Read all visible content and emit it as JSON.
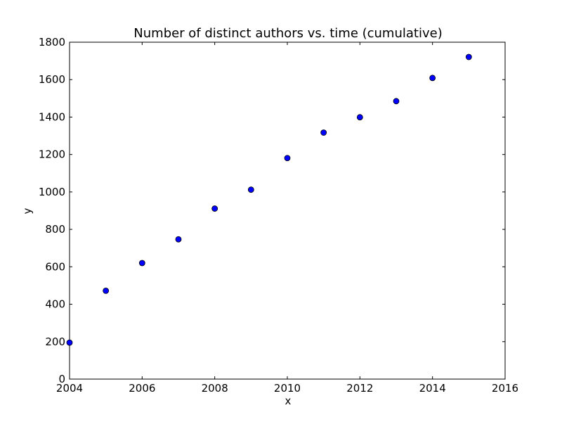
{
  "chart_data": {
    "type": "scatter",
    "title": "Number of distinct authors vs. time (cumulative)",
    "xlabel": "x",
    "ylabel": "y",
    "xlim": [
      2004,
      2016
    ],
    "ylim": [
      0,
      1800
    ],
    "xticks": [
      2004,
      2006,
      2008,
      2010,
      2012,
      2014,
      2016
    ],
    "yticks": [
      0,
      200,
      400,
      600,
      800,
      1000,
      1200,
      1400,
      1600,
      1800
    ],
    "grid": false,
    "marker_color": "#0000ff",
    "points": [
      {
        "x": 2004,
        "y": 195
      },
      {
        "x": 2005,
        "y": 472
      },
      {
        "x": 2006,
        "y": 620
      },
      {
        "x": 2007,
        "y": 747
      },
      {
        "x": 2008,
        "y": 911
      },
      {
        "x": 2009,
        "y": 1012
      },
      {
        "x": 2010,
        "y": 1181
      },
      {
        "x": 2011,
        "y": 1317
      },
      {
        "x": 2012,
        "y": 1399
      },
      {
        "x": 2013,
        "y": 1485
      },
      {
        "x": 2014,
        "y": 1609
      },
      {
        "x": 2015,
        "y": 1721
      }
    ]
  }
}
